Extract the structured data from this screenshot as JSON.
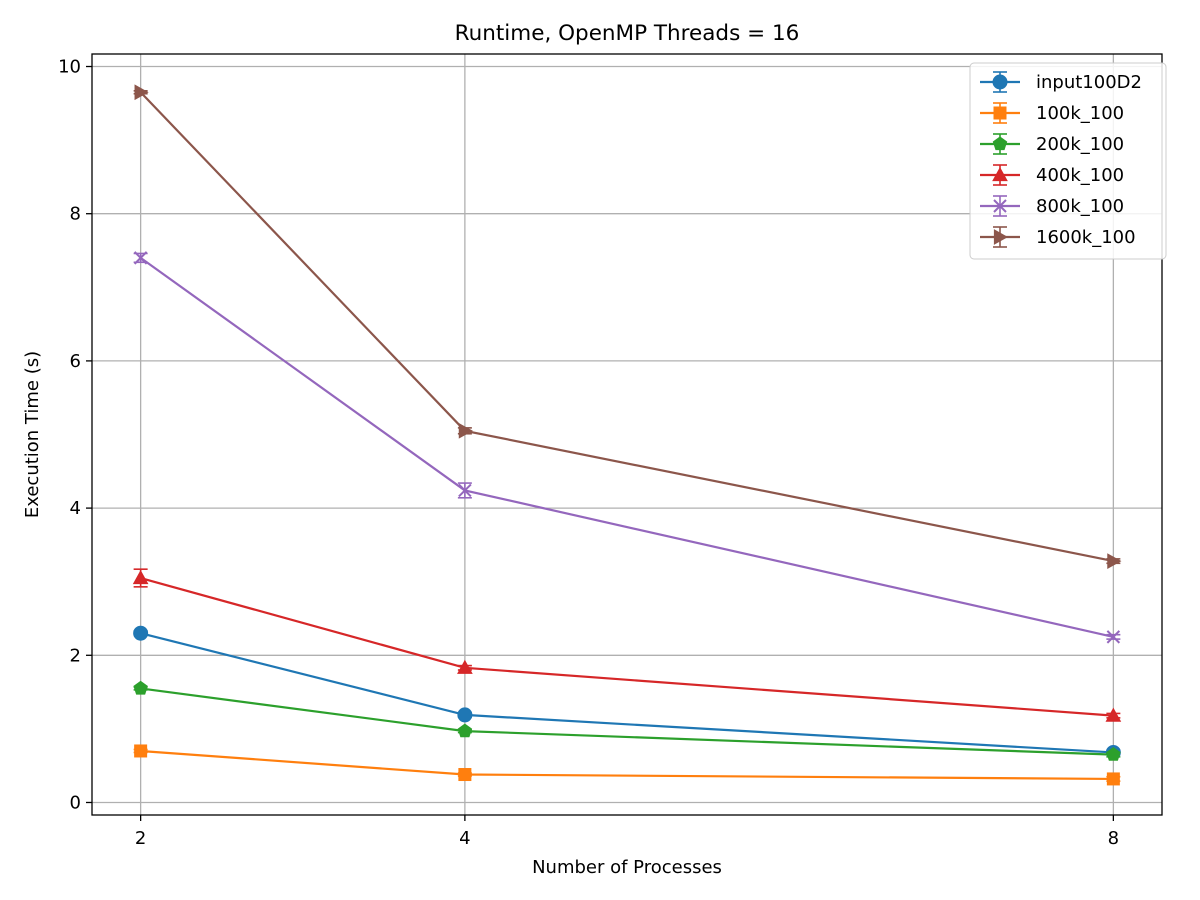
{
  "chart_data": {
    "type": "line",
    "title": "Runtime, OpenMP Threads = 16",
    "xlabel": "Number of Processes",
    "ylabel": "Execution Time (s)",
    "x": [
      2,
      4,
      8
    ],
    "x_tick_labels": [
      "2",
      "4",
      "8"
    ],
    "y_ticks": [
      0,
      2,
      4,
      6,
      8,
      10
    ],
    "y_tick_labels": [
      "0",
      "2",
      "4",
      "6",
      "8",
      "10"
    ],
    "xlim": [
      1.7,
      8.3
    ],
    "ylim": [
      -0.17,
      10.17
    ],
    "grid": true,
    "legend_position": "top-right",
    "series": [
      {
        "name": "input100D2",
        "color": "#1f77b4",
        "marker": "circle",
        "values": [
          2.3,
          1.19,
          0.68
        ],
        "errors": [
          0.03,
          0.03,
          0.03
        ]
      },
      {
        "name": "100k_100",
        "color": "#ff7f0e",
        "marker": "square",
        "values": [
          0.7,
          0.38,
          0.32
        ],
        "errors": [
          0.02,
          0.02,
          0.03
        ]
      },
      {
        "name": "200k_100",
        "color": "#2ca02c",
        "marker": "pentagon",
        "values": [
          1.55,
          0.97,
          0.65
        ],
        "errors": [
          0.02,
          0.02,
          0.03
        ]
      },
      {
        "name": "400k_100",
        "color": "#d62728",
        "marker": "triangle-up",
        "values": [
          3.05,
          1.83,
          1.18
        ],
        "errors": [
          0.12,
          0.03,
          0.03
        ]
      },
      {
        "name": "800k_100",
        "color": "#9467bd",
        "marker": "x",
        "values": [
          7.4,
          4.24,
          2.25
        ],
        "errors": [
          0.06,
          0.1,
          0.03
        ]
      },
      {
        "name": "1600k_100",
        "color": "#8c564b",
        "marker": "triangle-right",
        "values": [
          9.65,
          5.05,
          3.28
        ],
        "errors": [
          0.02,
          0.04,
          0.03
        ]
      }
    ]
  }
}
